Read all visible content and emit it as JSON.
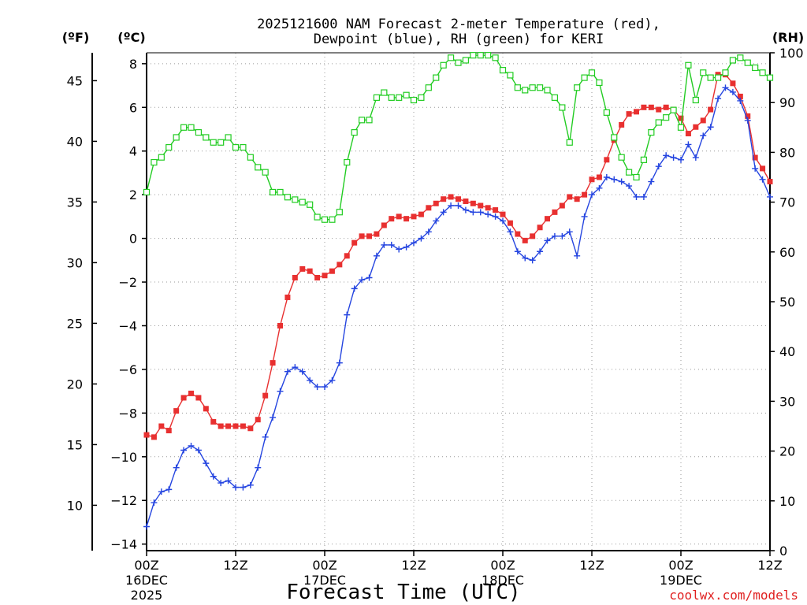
{
  "chart_data": {
    "type": "line",
    "title_line1": "2025121600 NAM Forecast 2-meter Temperature (red),",
    "title_line2": "Dewpoint (blue), RH (green) for KERI",
    "unit_f": "(ºF)",
    "unit_c": "(ºC)",
    "unit_rh": "(RH)",
    "xlabel": "Forecast Time (UTC)",
    "credit": "coolwx.com/models",
    "x_range_hours": [
      0,
      84
    ],
    "x_ticks": [
      {
        "hour": 0,
        "label": "00Z",
        "date": "16DEC",
        "year": "2025"
      },
      {
        "hour": 12,
        "label": "12Z",
        "date": "",
        "year": ""
      },
      {
        "hour": 24,
        "label": "00Z",
        "date": "17DEC",
        "year": ""
      },
      {
        "hour": 36,
        "label": "12Z",
        "date": "",
        "year": ""
      },
      {
        "hour": 48,
        "label": "00Z",
        "date": "18DEC",
        "year": ""
      },
      {
        "hour": 60,
        "label": "12Z",
        "date": "",
        "year": ""
      },
      {
        "hour": 72,
        "label": "00Z",
        "date": "19DEC",
        "year": ""
      },
      {
        "hour": 84,
        "label": "12Z",
        "date": "",
        "year": ""
      }
    ],
    "c_range": [
      -14.3,
      8.5
    ],
    "c_ticks": [
      8,
      6,
      4,
      2,
      0,
      -2,
      -4,
      -6,
      -8,
      -10,
      -12,
      -14
    ],
    "f_ticks": [
      45,
      40,
      35,
      30,
      25,
      20,
      15,
      10
    ],
    "rh_range": [
      0,
      100
    ],
    "rh_ticks": [
      100,
      90,
      80,
      70,
      60,
      50,
      40,
      30,
      20,
      10,
      0
    ],
    "series": [
      {
        "name": "2-meter Temperature",
        "units": "C",
        "color": "#e83030",
        "marker": "filled-square",
        "step_hours": 1,
        "values": [
          -9.0,
          -9.1,
          -8.6,
          -8.8,
          -7.9,
          -7.3,
          -7.1,
          -7.3,
          -7.8,
          -8.4,
          -8.6,
          -8.6,
          -8.6,
          -8.6,
          -8.7,
          -8.3,
          -7.2,
          -5.7,
          -4.0,
          -2.7,
          -1.8,
          -1.4,
          -1.5,
          -1.8,
          -1.7,
          -1.5,
          -1.2,
          -0.8,
          -0.2,
          0.1,
          0.1,
          0.2,
          0.6,
          0.9,
          1.0,
          0.9,
          1.0,
          1.1,
          1.4,
          1.6,
          1.8,
          1.9,
          1.8,
          1.7,
          1.6,
          1.5,
          1.4,
          1.3,
          1.1,
          0.7,
          0.2,
          -0.1,
          0.1,
          0.5,
          0.9,
          1.2,
          1.5,
          1.9,
          1.8,
          2.0,
          2.7,
          2.8,
          3.6,
          4.5,
          5.2,
          5.7,
          5.8,
          6.0,
          6.0,
          5.9,
          6.0,
          5.9,
          5.5,
          4.8,
          5.1,
          5.4,
          5.9,
          7.5,
          7.5,
          7.1,
          6.5,
          5.6,
          3.7,
          3.2,
          2.6
        ]
      },
      {
        "name": "Dewpoint",
        "units": "C",
        "color": "#2545e0",
        "marker": "plus",
        "step_hours": 1,
        "values": [
          -13.2,
          -12.1,
          -11.6,
          -11.5,
          -10.5,
          -9.7,
          -9.5,
          -9.7,
          -10.3,
          -10.9,
          -11.2,
          -11.1,
          -11.4,
          -11.4,
          -11.3,
          -10.5,
          -9.1,
          -8.2,
          -7.0,
          -6.1,
          -5.9,
          -6.1,
          -6.5,
          -6.8,
          -6.8,
          -6.5,
          -5.7,
          -3.5,
          -2.3,
          -1.9,
          -1.8,
          -0.8,
          -0.3,
          -0.3,
          -0.5,
          -0.4,
          -0.2,
          0.0,
          0.3,
          0.8,
          1.2,
          1.5,
          1.5,
          1.3,
          1.2,
          1.2,
          1.1,
          1.0,
          0.8,
          0.3,
          -0.6,
          -0.9,
          -1.0,
          -0.6,
          -0.1,
          0.1,
          0.1,
          0.3,
          -0.8,
          1.0,
          2.0,
          2.3,
          2.8,
          2.7,
          2.6,
          2.4,
          1.9,
          1.9,
          2.6,
          3.3,
          3.8,
          3.7,
          3.6,
          4.3,
          3.7,
          4.7,
          5.1,
          6.4,
          6.9,
          6.7,
          6.3,
          5.4,
          3.2,
          2.7,
          1.9
        ]
      },
      {
        "name": "Relative Humidity",
        "units": "%",
        "color": "#22cc22",
        "marker": "open-square",
        "step_hours": 1,
        "values": [
          72,
          78,
          79,
          81,
          83,
          85,
          85,
          84,
          83,
          82,
          82,
          83,
          81,
          81,
          79,
          77,
          76,
          72,
          72,
          71,
          70.5,
          70,
          69.5,
          67,
          66.5,
          66.5,
          68,
          78,
          84,
          86.5,
          86.5,
          91,
          92,
          91,
          91,
          91.5,
          90.5,
          91,
          93,
          95,
          97.5,
          99,
          98,
          98.5,
          99.5,
          99.5,
          99.5,
          99,
          96.5,
          95.5,
          93,
          92.5,
          93,
          93,
          92.5,
          91,
          89,
          82,
          93,
          95,
          96,
          94,
          88,
          83,
          79,
          76,
          75,
          78.5,
          84,
          86,
          87,
          88.5,
          85,
          97.5,
          90.5,
          96,
          95,
          95,
          96,
          98.5,
          99,
          98,
          97,
          96,
          95
        ]
      }
    ]
  }
}
